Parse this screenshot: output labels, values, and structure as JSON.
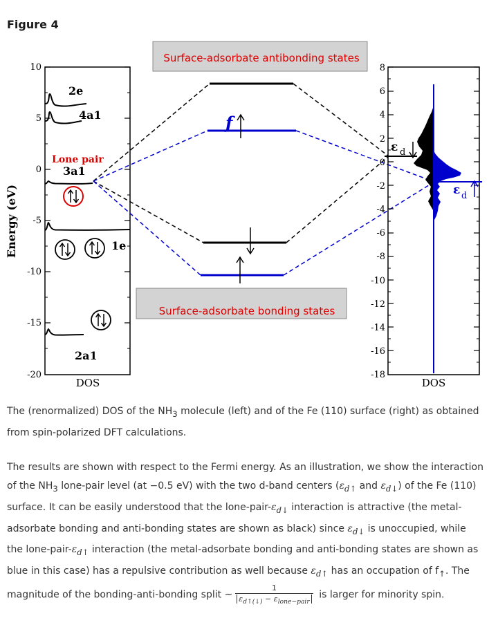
{
  "figure_title": "Figure 4",
  "left_panel": {
    "y_axis_label": "Energy (eV)",
    "y_ticks": [
      "10",
      "5",
      "0",
      "-5",
      "-10",
      "-15",
      "-20"
    ],
    "x_label": "DOS",
    "labels": {
      "2e": "2e",
      "4a1": "4a1",
      "lone_pair": "Lone pair",
      "3a1": "3a1",
      "1e": "1e",
      "2a1": "2a1"
    }
  },
  "center": {
    "antibonding_label": "Surface-adsorbate antibonding states",
    "bonding_label": "Surface-adsorbate bonding states",
    "f_label": "f"
  },
  "right_panel": {
    "y_ticks": [
      "8",
      "6",
      "4",
      "2",
      "0",
      "-2",
      "-4",
      "-6",
      "-8",
      "-10",
      "-12",
      "-14",
      "-16",
      "-18"
    ],
    "x_label": "DOS",
    "eps_symbol": "ε",
    "eps_sub": "d"
  },
  "caption": {
    "p1": "The (renormalized) DOS of the NH",
    "p1_sub": "3",
    "p2": " molecule (left) and of the Fe (110) surface (right) as obtained from spin-polarized DFT calculations."
  },
  "paragraph": {
    "s1": "The results are shown with respect to the Fermi energy. As an illustration, we show the interaction of the NH",
    "s1_sub": "3",
    "s2": " lone-pair level (at −0.5 eV) with the two d-band centers (",
    "m1": "ε",
    "m1_sub": "d↑",
    "and": " and ",
    "m2": "ε",
    "m2_sub": "d↓",
    "s3": ") of the Fe (110) surface. It can be easily understood that the lone-pair-",
    "m3": "ε",
    "m3_sub": "d↓",
    "s4": " interaction is attractive (the metal-adsorbate bonding and anti-bonding states are shown as black) since ",
    "m4": "ε",
    "m4_sub": "d↓",
    "s5": " is unoccupied, while the lone-pair-",
    "m5": "ε",
    "m5_sub": "d↑",
    "s6": " interaction (the metal-adsorbate bonding and anti-bonding states are shown as blue in this case) has a repulsive contribution as well because ",
    "m6": "ε",
    "m6_sub": "d↑",
    "s7": " has an occupation of f",
    "s7_sub": "↑",
    "s8": ". The magnitude of the bonding-anti-bonding split ~",
    "frac_num": "1",
    "frac_den_a": "ε",
    "frac_den_a_sub": "d↑(↓)",
    "frac_den_mid": " − ",
    "frac_den_b": "ε",
    "frac_den_b_sub": "lone−pair",
    "s9": " is larger for minority spin."
  },
  "colors": {
    "black": "#000000",
    "blue": "#0000cc",
    "red": "#dd0000",
    "box_fill": "#d3d3d3"
  }
}
